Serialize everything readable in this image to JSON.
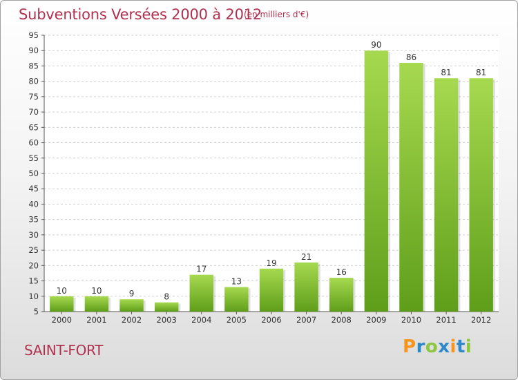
{
  "title": "Subventions Versées 2000 à 2012",
  "subtitle": "(en milliers d'€)",
  "commune": "SAINT-FORT",
  "logo": {
    "letters": [
      "P",
      "r",
      "o",
      "x",
      "i",
      "t",
      "i"
    ],
    "colors": [
      "#f7941d",
      "#2e88c9",
      "#8dc63f",
      "#2e88c9",
      "#f7941d",
      "#2e88c9",
      "#8dc63f"
    ]
  },
  "colors": {
    "title": "#b2304f",
    "bar_light": "#a6d94f",
    "bar_dark": "#5f9e1a",
    "grid": "#cfcfcf"
  },
  "chart_data": {
    "type": "bar",
    "categories": [
      "2000",
      "2001",
      "2002",
      "2003",
      "2004",
      "2005",
      "2006",
      "2007",
      "2008",
      "2009",
      "2010",
      "2011",
      "2012"
    ],
    "values": [
      10,
      10,
      9,
      8,
      17,
      13,
      19,
      21,
      16,
      90,
      86,
      81,
      81
    ],
    "ylim": [
      5,
      95
    ],
    "yticks": [
      5,
      10,
      15,
      20,
      25,
      30,
      35,
      40,
      45,
      50,
      55,
      60,
      65,
      70,
      75,
      80,
      85,
      90,
      95
    ],
    "grid": true,
    "data_labels": true
  }
}
